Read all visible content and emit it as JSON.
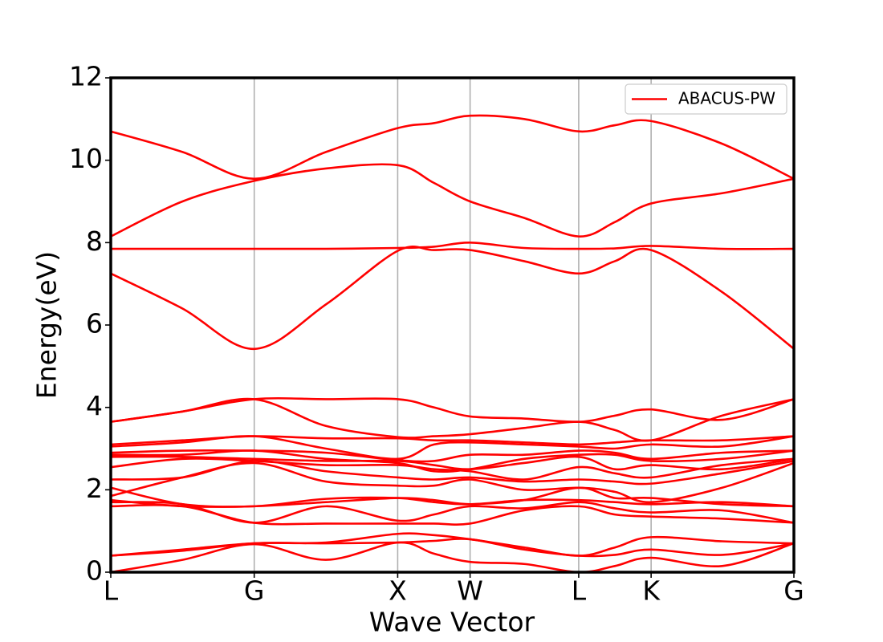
{
  "chart_data": {
    "type": "line",
    "x_label": "Wave Vector",
    "y_label": "Energy(eV)",
    "x": [
      0,
      0.105,
      0.21,
      0.315,
      0.42,
      0.473,
      0.526,
      0.605,
      0.685,
      0.738,
      0.791,
      0.895,
      1
    ],
    "xlim": [
      0,
      1
    ],
    "xticks": [
      {
        "value": 0,
        "label": "L"
      },
      {
        "value": 0.21,
        "label": "G"
      },
      {
        "value": 0.42,
        "label": "X"
      },
      {
        "value": 0.526,
        "label": "W"
      },
      {
        "value": 0.685,
        "label": "L"
      },
      {
        "value": 0.791,
        "label": "K"
      },
      {
        "value": 1,
        "label": "G"
      }
    ],
    "ylim": [
      0,
      12
    ],
    "yticks": [
      0,
      2,
      4,
      6,
      8,
      10,
      12
    ],
    "grid": "x",
    "legend": "upper right",
    "series": [
      {
        "name": "ABACUS-PW",
        "color": "#ff0000",
        "lines": [
          [
            0.0,
            0.3,
            0.68,
            0.3,
            0.72,
            0.45,
            0.25,
            0.2,
            0.0,
            0.15,
            0.35,
            0.15,
            0.7
          ],
          [
            0.4,
            0.52,
            0.7,
            0.7,
            0.72,
            0.76,
            0.8,
            0.55,
            0.4,
            0.42,
            0.55,
            0.42,
            0.7
          ],
          [
            0.4,
            0.55,
            0.7,
            0.72,
            0.93,
            0.9,
            0.8,
            0.6,
            0.4,
            0.6,
            0.85,
            0.75,
            0.7
          ],
          [
            1.6,
            1.6,
            1.2,
            1.18,
            1.18,
            1.18,
            1.18,
            1.5,
            1.6,
            1.4,
            1.35,
            1.3,
            1.2
          ],
          [
            1.7,
            1.65,
            1.2,
            1.6,
            1.25,
            1.4,
            1.6,
            1.55,
            1.7,
            1.55,
            1.45,
            1.5,
            1.2
          ],
          [
            1.75,
            1.6,
            1.6,
            1.7,
            1.8,
            1.75,
            1.65,
            1.75,
            1.75,
            1.7,
            1.65,
            1.7,
            1.6
          ],
          [
            2.05,
            1.65,
            1.6,
            1.78,
            1.8,
            1.7,
            1.65,
            1.75,
            2.05,
            1.8,
            1.8,
            1.65,
            1.6
          ],
          [
            1.85,
            2.3,
            2.65,
            2.2,
            2.1,
            2.1,
            2.25,
            2.0,
            2.05,
            1.95,
            1.7,
            2.05,
            2.65
          ],
          [
            2.25,
            2.3,
            2.7,
            2.45,
            2.3,
            2.25,
            2.3,
            2.2,
            2.25,
            2.2,
            2.15,
            2.4,
            2.7
          ],
          [
            2.55,
            2.75,
            2.7,
            2.6,
            2.6,
            2.5,
            2.45,
            2.25,
            2.55,
            2.4,
            2.3,
            2.6,
            2.75
          ],
          [
            2.8,
            2.8,
            2.75,
            2.7,
            2.7,
            2.6,
            2.5,
            2.65,
            2.8,
            2.5,
            2.6,
            2.5,
            2.75
          ],
          [
            2.85,
            2.85,
            2.95,
            2.75,
            2.65,
            2.45,
            2.5,
            2.75,
            2.85,
            2.85,
            2.7,
            2.75,
            2.95
          ],
          [
            2.9,
            2.95,
            2.95,
            2.9,
            2.72,
            2.7,
            2.85,
            2.85,
            2.95,
            2.9,
            2.75,
            2.9,
            2.95
          ],
          [
            3.05,
            3.15,
            3.3,
            3.0,
            2.75,
            3.1,
            3.15,
            3.1,
            3.05,
            3.0,
            3.1,
            3.05,
            3.3
          ],
          [
            3.1,
            3.2,
            3.3,
            3.25,
            3.25,
            3.2,
            3.2,
            3.15,
            3.1,
            3.15,
            3.2,
            3.2,
            3.3
          ],
          [
            3.65,
            3.9,
            4.2,
            3.55,
            3.28,
            3.3,
            3.35,
            3.5,
            3.65,
            3.45,
            3.2,
            3.8,
            4.2
          ],
          [
            3.65,
            3.9,
            4.2,
            4.2,
            4.2,
            4.0,
            3.78,
            3.73,
            3.65,
            3.8,
            3.95,
            3.7,
            4.2
          ],
          [
            7.25,
            6.4,
            5.42,
            6.5,
            7.8,
            7.82,
            7.82,
            7.55,
            7.25,
            7.55,
            7.82,
            6.8,
            5.42
          ],
          [
            7.85,
            7.85,
            7.85,
            7.85,
            7.87,
            7.9,
            8.0,
            7.87,
            7.85,
            7.86,
            7.92,
            7.85,
            7.85
          ],
          [
            8.15,
            9.0,
            9.5,
            9.8,
            9.88,
            9.45,
            9.0,
            8.6,
            8.15,
            8.5,
            8.95,
            9.2,
            9.55
          ],
          [
            10.7,
            10.2,
            9.55,
            10.2,
            10.78,
            10.9,
            11.08,
            11.0,
            10.7,
            10.85,
            10.95,
            10.4,
            9.55
          ]
        ]
      }
    ]
  }
}
